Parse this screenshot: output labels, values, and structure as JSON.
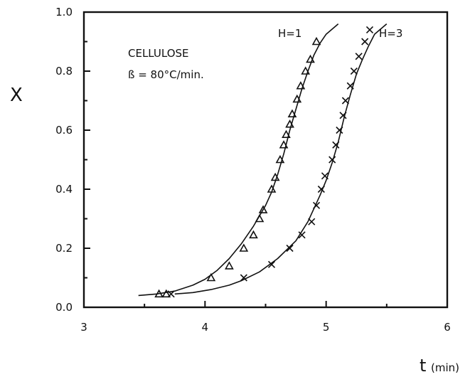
{
  "chart_data": {
    "type": "line",
    "xlim": [
      3,
      6
    ],
    "ylim": [
      0.0,
      1.0
    ],
    "x_ticks": [
      "3",
      "4",
      "5",
      "6"
    ],
    "y_ticks": [
      "0.0",
      "0.2",
      "0.4",
      "0.6",
      "0.8",
      "1.0"
    ],
    "ylabel": "X",
    "xlabel_main": "t",
    "xlabel_unit": "(min)",
    "annotations": [
      "CELLULOSE",
      "ß = 80°C/min."
    ],
    "grid": false,
    "series": [
      {
        "name": "H=1",
        "marker": "triangle",
        "curve": [
          [
            3.45,
            0.04
          ],
          [
            3.6,
            0.045
          ],
          [
            3.75,
            0.055
          ],
          [
            3.9,
            0.075
          ],
          [
            4.0,
            0.095
          ],
          [
            4.1,
            0.125
          ],
          [
            4.2,
            0.165
          ],
          [
            4.3,
            0.215
          ],
          [
            4.4,
            0.275
          ],
          [
            4.5,
            0.345
          ],
          [
            4.55,
            0.39
          ],
          [
            4.6,
            0.45
          ],
          [
            4.65,
            0.52
          ],
          [
            4.7,
            0.6
          ],
          [
            4.75,
            0.67
          ],
          [
            4.8,
            0.74
          ],
          [
            4.85,
            0.8
          ],
          [
            4.9,
            0.855
          ],
          [
            4.95,
            0.895
          ],
          [
            5.0,
            0.925
          ],
          [
            5.1,
            0.96
          ]
        ],
        "points": [
          [
            3.62,
            0.045
          ],
          [
            3.68,
            0.045
          ],
          [
            4.05,
            0.1
          ],
          [
            4.2,
            0.14
          ],
          [
            4.32,
            0.2
          ],
          [
            4.4,
            0.245
          ],
          [
            4.45,
            0.3
          ],
          [
            4.48,
            0.33
          ],
          [
            4.55,
            0.4
          ],
          [
            4.58,
            0.44
          ],
          [
            4.62,
            0.5
          ],
          [
            4.65,
            0.55
          ],
          [
            4.67,
            0.585
          ],
          [
            4.7,
            0.62
          ],
          [
            4.72,
            0.655
          ],
          [
            4.76,
            0.705
          ],
          [
            4.79,
            0.75
          ],
          [
            4.83,
            0.8
          ],
          [
            4.87,
            0.84
          ],
          [
            4.92,
            0.9
          ]
        ]
      },
      {
        "name": "H=3",
        "marker": "x",
        "curve": [
          [
            3.75,
            0.045
          ],
          [
            3.9,
            0.05
          ],
          [
            4.05,
            0.06
          ],
          [
            4.2,
            0.075
          ],
          [
            4.3,
            0.09
          ],
          [
            4.45,
            0.12
          ],
          [
            4.6,
            0.165
          ],
          [
            4.75,
            0.225
          ],
          [
            4.85,
            0.29
          ],
          [
            4.95,
            0.38
          ],
          [
            5.0,
            0.43
          ],
          [
            5.05,
            0.49
          ],
          [
            5.1,
            0.56
          ],
          [
            5.15,
            0.645
          ],
          [
            5.2,
            0.72
          ],
          [
            5.25,
            0.79
          ],
          [
            5.3,
            0.84
          ],
          [
            5.35,
            0.885
          ],
          [
            5.4,
            0.925
          ],
          [
            5.5,
            0.96
          ]
        ],
        "points": [
          [
            3.72,
            0.045
          ],
          [
            4.32,
            0.1
          ],
          [
            4.55,
            0.145
          ],
          [
            4.7,
            0.2
          ],
          [
            4.8,
            0.245
          ],
          [
            4.88,
            0.29
          ],
          [
            4.92,
            0.345
          ],
          [
            4.96,
            0.4
          ],
          [
            4.99,
            0.445
          ],
          [
            5.05,
            0.5
          ],
          [
            5.08,
            0.55
          ],
          [
            5.11,
            0.6
          ],
          [
            5.14,
            0.65
          ],
          [
            5.16,
            0.7
          ],
          [
            5.2,
            0.75
          ],
          [
            5.23,
            0.8
          ],
          [
            5.27,
            0.85
          ],
          [
            5.32,
            0.9
          ],
          [
            5.36,
            0.94
          ]
        ]
      }
    ]
  }
}
